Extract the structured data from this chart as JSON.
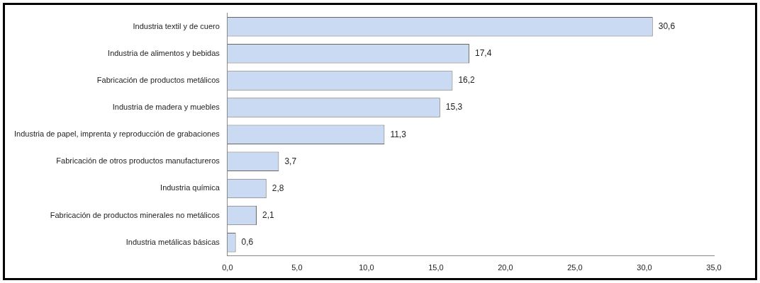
{
  "chart_data": {
    "type": "bar",
    "orientation": "horizontal",
    "categories": [
      "Industria textil y de cuero",
      "Industria de alimentos y bebidas",
      "Fabricación de productos metálicos",
      "Industria de madera y muebles",
      "Industria de papel, imprenta y reproducción de grabaciones",
      "Fabricación de otros productos manufactureros",
      "Industria química",
      "Fabricación de productos minerales no metálicos",
      "Industria metálicas básicas"
    ],
    "values": [
      30.6,
      17.4,
      16.2,
      15.3,
      11.3,
      3.7,
      2.8,
      2.1,
      0.6
    ],
    "value_labels": [
      "30,6",
      "17,4",
      "16,2",
      "15,3",
      "11,3",
      "3,7",
      "2,8",
      "2,1",
      "0,6"
    ],
    "color": "#c9daf2",
    "xlim": [
      0,
      35
    ],
    "xticks": [
      {
        "value": 0,
        "label": "0,0"
      },
      {
        "value": 5,
        "label": "5,0"
      },
      {
        "value": 10,
        "label": "10,0"
      },
      {
        "value": 15,
        "label": "15,0"
      },
      {
        "value": 20,
        "label": "20,0"
      },
      {
        "value": 25,
        "label": "25,0"
      },
      {
        "value": 30,
        "label": "30,0"
      },
      {
        "value": 35,
        "label": "35,0"
      }
    ],
    "grid": false,
    "legend": false
  }
}
